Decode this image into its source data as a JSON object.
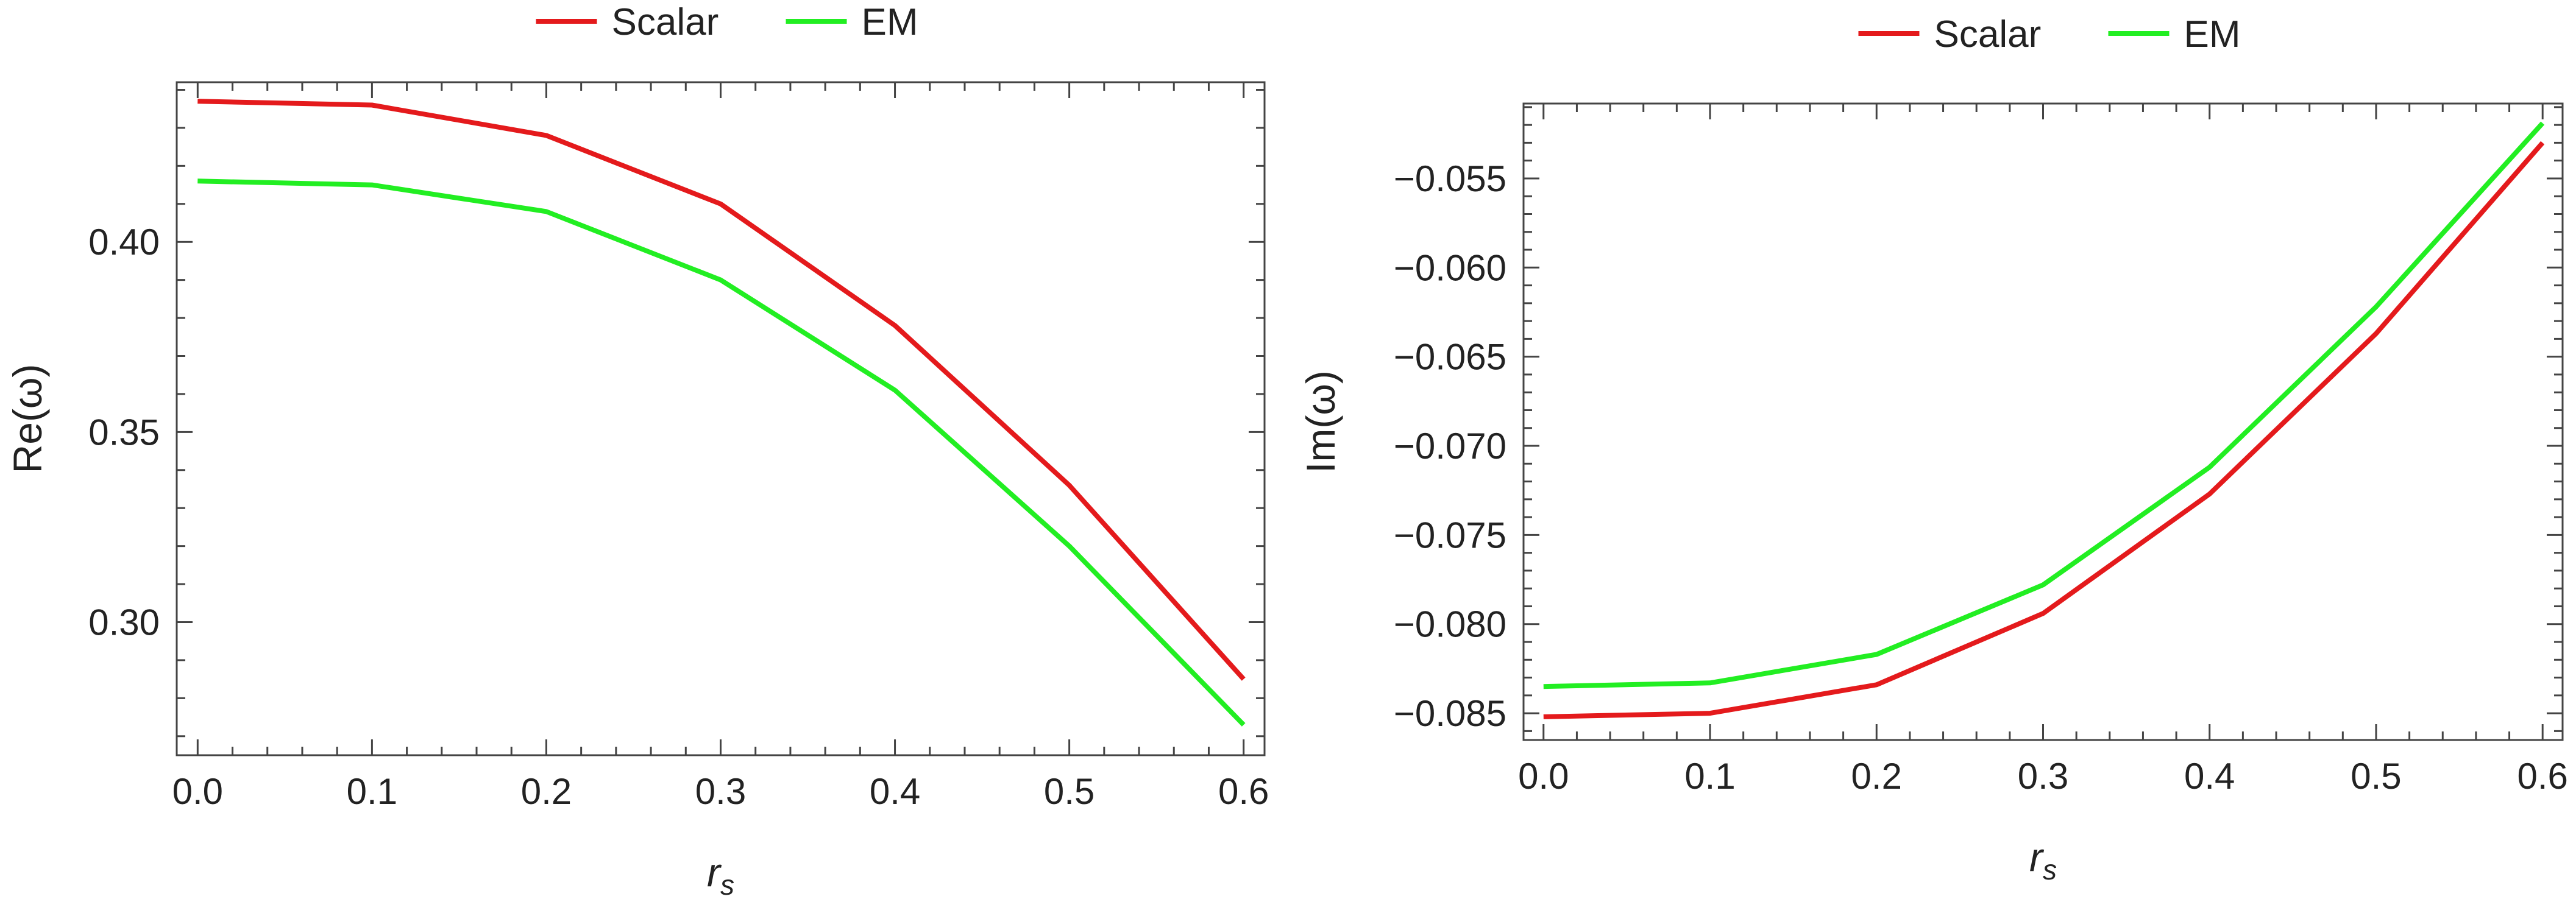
{
  "chart_data": [
    {
      "type": "line",
      "title": "",
      "xlabel": "r",
      "xlabel_sub": "s",
      "ylabel": "Re(ω)",
      "xlim": [
        -0.012,
        0.612
      ],
      "ylim": [
        0.265,
        0.442
      ],
      "x_ticks": [
        0.0,
        0.1,
        0.2,
        0.3,
        0.4,
        0.5,
        0.6
      ],
      "x_tick_labels": [
        "0.0",
        "0.1",
        "0.2",
        "0.3",
        "0.4",
        "0.5",
        "0.6"
      ],
      "y_ticks": [
        0.3,
        0.35,
        0.4
      ],
      "y_tick_labels": [
        "0.30",
        "0.35",
        "0.40"
      ],
      "x_minor_step": 0.02,
      "y_minor_step": 0.01,
      "grid": false,
      "legend_position": "top",
      "x": [
        0.0,
        0.1,
        0.2,
        0.3,
        0.4,
        0.5,
        0.6
      ],
      "series": [
        {
          "name": "Scalar",
          "color": "#e41a1c",
          "values": [
            0.437,
            0.436,
            0.428,
            0.41,
            0.378,
            0.336,
            0.285
          ]
        },
        {
          "name": "EM",
          "color": "#22ee22",
          "values": [
            0.416,
            0.415,
            0.408,
            0.39,
            0.361,
            0.32,
            0.273
          ]
        }
      ]
    },
    {
      "type": "line",
      "title": "",
      "xlabel": "r",
      "xlabel_sub": "s",
      "ylabel": "Im(ω)",
      "xlim": [
        -0.012,
        0.612
      ],
      "ylim": [
        -0.0865,
        -0.0508
      ],
      "x_ticks": [
        0.0,
        0.1,
        0.2,
        0.3,
        0.4,
        0.5,
        0.6
      ],
      "x_tick_labels": [
        "0.0",
        "0.1",
        "0.2",
        "0.3",
        "0.4",
        "0.5",
        "0.6"
      ],
      "y_ticks": [
        -0.085,
        -0.08,
        -0.075,
        -0.07,
        -0.065,
        -0.06,
        -0.055
      ],
      "y_tick_labels": [
        "−0.085",
        "−0.080",
        "−0.075",
        "−0.070",
        "−0.065",
        "−0.060",
        "−0.055"
      ],
      "x_minor_step": 0.02,
      "y_minor_step": 0.001,
      "grid": false,
      "legend_position": "top",
      "x": [
        0.0,
        0.1,
        0.2,
        0.3,
        0.4,
        0.5,
        0.6
      ],
      "series": [
        {
          "name": "Scalar",
          "color": "#e41a1c",
          "values": [
            -0.0852,
            -0.085,
            -0.0834,
            -0.0794,
            -0.0727,
            -0.0637,
            -0.053
          ]
        },
        {
          "name": "EM",
          "color": "#22ee22",
          "values": [
            -0.0835,
            -0.0833,
            -0.0817,
            -0.0778,
            -0.0712,
            -0.0622,
            -0.0519
          ]
        }
      ]
    }
  ]
}
